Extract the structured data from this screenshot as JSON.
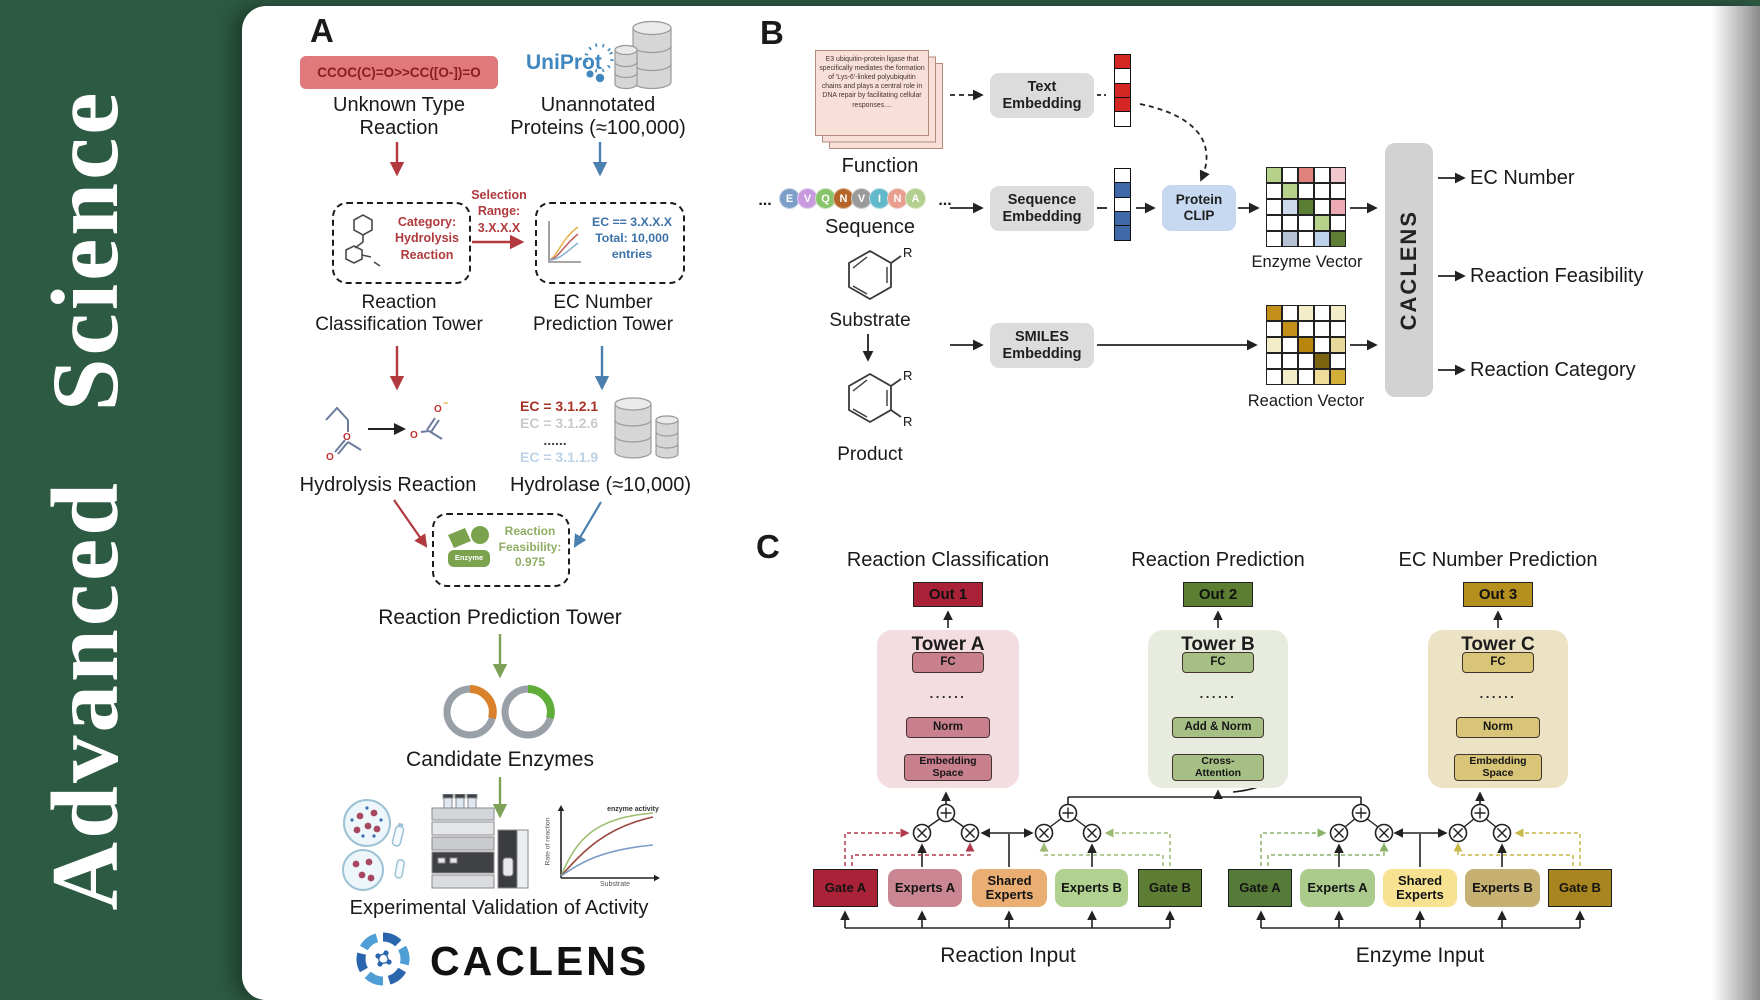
{
  "masthead": {
    "brand": "Advanced Science"
  },
  "panel_a": {
    "label": "A",
    "smiles": "CCOC(C)=O>>CC([O-])=O",
    "unknown_type": "Unknown Type\nReaction",
    "uniprot": "UniProt",
    "unannotated": "Unannotated\nProteins (≈100,000)",
    "category_box": "Category:\nHydrolysis\nReaction",
    "selection_range": "Selection\nRange:\n3.X.X.X",
    "ec_filter_box": "EC == 3.X.X.X\nTotal: 10,000\nentries",
    "classification_tower": "Reaction\nClassification Tower",
    "ec_tower": "EC Number\nPrediction Tower",
    "ec_list": [
      {
        "text": "EC = 3.1.2.1",
        "color": "#a63226"
      },
      {
        "text": "EC = 3.1.2.6",
        "color": "#c9c9c9"
      },
      {
        "text": "......",
        "color": "#444444"
      },
      {
        "text": "EC = 3.1.1.9",
        "color": "#bcd2e8"
      }
    ],
    "hydrolysis": "Hydrolysis Reaction",
    "hydrolase": "Hydrolase (≈10,000)",
    "enzyme_badge": "Enzyme",
    "feasibility": "Reaction\nFeasibility:\n0.975",
    "prediction_tower": "Reaction Prediction Tower",
    "candidates": "Candidate Enzymes",
    "plot": {
      "ylabel": "Rate of reaction",
      "xlabel": "Substrate",
      "annotation": "enzyme activity"
    },
    "validation": "Experimental Validation of Activity",
    "brand": "CACLENS"
  },
  "panel_b": {
    "label": "B",
    "function_card": "E3 ubiquitin-protein ligase that specifically mediates the formation of 'Lys-6'-linked polyubiquitin chains and plays a central role in DNA repair by facilitating cellular responses....",
    "function_label": "Function",
    "ellipsis": "...",
    "sequence": [
      {
        "letter": "E",
        "color": "#7b9fc8"
      },
      {
        "letter": "V",
        "color": "#c79ae0"
      },
      {
        "letter": "Q",
        "color": "#88c46a"
      },
      {
        "letter": "N",
        "color": "#b5652a"
      },
      {
        "letter": "V",
        "color": "#9a9a9a"
      },
      {
        "letter": "I",
        "color": "#62b9cc"
      },
      {
        "letter": "N",
        "color": "#e89e8e"
      },
      {
        "letter": "A",
        "color": "#b3cf90"
      }
    ],
    "sequence_label": "Sequence",
    "substrate_label": "Substrate",
    "product_label": "Product",
    "r": "R",
    "text_embedding": "Text\nEmbedding",
    "sequence_embedding": "Sequence\nEmbedding",
    "smiles_embedding": "SMILES\nEmbedding",
    "protein_clip": "Protein\nCLIP",
    "text_vector": [
      "#d42724",
      "#ffffff",
      "#d42724",
      "#d42724",
      "#ffffff"
    ],
    "sequence_vector": [
      "#ffffff",
      "#3f69a8",
      "#ffffff",
      "#3f69a8",
      "#3f69a8"
    ],
    "enzyme_matrix": [
      [
        "#b5d18a",
        "#ffffff",
        "#e0837e",
        "#ffffff",
        "#f2c6cd"
      ],
      [
        "#ffffff",
        "#b5d18a",
        "#ffffff",
        "#ffffff",
        "#ffffff"
      ],
      [
        "#ffffff",
        "#ccdaec",
        "#5a7e33",
        "#ffffff",
        "#eeaab4"
      ],
      [
        "#ffffff",
        "#ffffff",
        "#ffffff",
        "#b5d18a",
        "#ffffff"
      ],
      [
        "#ffffff",
        "#b4c2d4",
        "#ffffff",
        "#bcd2ea",
        "#5f7e35"
      ]
    ],
    "reaction_matrix": [
      [
        "#c29018",
        "#ffffff",
        "#f3ecc8",
        "#ffffff",
        "#f3ecc8"
      ],
      [
        "#ffffff",
        "#c29018",
        "#ffffff",
        "#ffffff",
        "#ffffff"
      ],
      [
        "#f3ecc8",
        "#ffffff",
        "#b8860b",
        "#ffffff",
        "#e8d89a"
      ],
      [
        "#ffffff",
        "#ffffff",
        "#ffffff",
        "#7a6410",
        "#ffffff"
      ],
      [
        "#ffffff",
        "#f3ecc8",
        "#ffffff",
        "#f0dc9a",
        "#d4af37"
      ]
    ],
    "enzyme_vector_label": "Enzyme Vector",
    "reaction_vector_label": "Reaction Vector",
    "caclens": "CACLENS",
    "outputs": [
      "EC Number",
      "Reaction Feasibility",
      "Reaction Category"
    ]
  },
  "panel_c": {
    "label": "C",
    "headers": [
      "Reaction Classification",
      "Reaction Prediction",
      "EC Number Prediction"
    ],
    "outs": [
      {
        "label": "Out 1",
        "bg": "#aa2238"
      },
      {
        "label": "Out 2",
        "bg": "#5b7e33"
      },
      {
        "label": "Out 3",
        "bg": "#b5901f"
      }
    ],
    "towers": [
      {
        "title": "Tower A",
        "bg": "#f3dde1",
        "box_bg": "#c8808f",
        "fc": "FC",
        "dots": "......",
        "mid": "Norm",
        "bottom": "Embedding\nSpace"
      },
      {
        "title": "Tower B",
        "bg": "#e7ecdf",
        "box_bg": "#a6bf85",
        "fc": "FC",
        "dots": "......",
        "mid": "Add & Norm",
        "bottom": "Cross-\nAttention"
      },
      {
        "title": "Tower C",
        "bg": "#ebe3c4",
        "box_bg": "#d8c577",
        "fc": "FC",
        "dots": "......",
        "mid": "Norm",
        "bottom": "Embedding\nSpace"
      }
    ],
    "moe_left": {
      "gate_a": {
        "label": "Gate A",
        "bg": "#aa2238"
      },
      "experts_a": {
        "label": "Experts A",
        "bg": "#ca8793"
      },
      "shared": {
        "label": "Shared\nExperts",
        "bg": "#eaae73"
      },
      "experts_b": {
        "label": "Experts B",
        "bg": "#b0d18f"
      },
      "gate_b": {
        "label": "Gate B",
        "bg": "#5d7d35"
      },
      "input": "Reaction Input"
    },
    "moe_right": {
      "gate_a": {
        "label": "Gate A",
        "bg": "#567a38"
      },
      "experts_a": {
        "label": "Experts A",
        "bg": "#abcb8d"
      },
      "shared": {
        "label": "Shared\nExperts",
        "bg": "#f6e291"
      },
      "experts_b": {
        "label": "Experts B",
        "bg": "#c6b072"
      },
      "gate_b": {
        "label": "Gate B",
        "bg": "#a8851f"
      },
      "input": "Enzyme Input"
    }
  }
}
